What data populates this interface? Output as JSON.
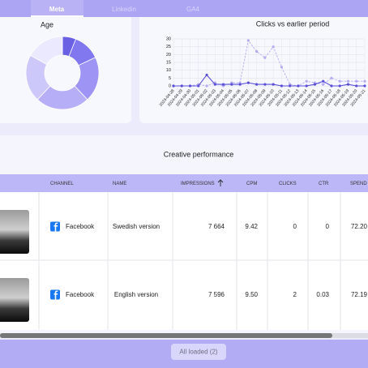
{
  "tabs": [
    {
      "label": "Meta",
      "active": true
    },
    {
      "label": "Linkedin",
      "active": false
    },
    {
      "label": "GA4",
      "active": false
    }
  ],
  "chart_data": [
    {
      "type": "pie",
      "title": "Age",
      "donut": true,
      "values": [
        6,
        12,
        20,
        24,
        21,
        17
      ],
      "colors": [
        "#6a60e4",
        "#8177ee",
        "#9d94f3",
        "#b6aff7",
        "#cdc8fa",
        "#ebe9fd"
      ]
    },
    {
      "type": "line",
      "title": "Clicks vs earlier period",
      "x": [
        "2024-04-28",
        "2024-04-29",
        "2024-04-30",
        "2024-05-01",
        "2024-05-02",
        "2024-05-03",
        "2024-05-04",
        "2024-05-05",
        "2024-05-06",
        "2024-05-07",
        "2024-05-08",
        "2024-05-09",
        "2024-05-10",
        "2024-05-11",
        "2024-05-12",
        "2024-05-13",
        "2024-05-14",
        "2024-05-15",
        "2024-05-16",
        "2024-05-17",
        "2024-05-18",
        "2024-05-19",
        "2024-05-20",
        "2024-05-21"
      ],
      "series": [
        {
          "color": "#5a50d8",
          "dashed": false,
          "values": [
            0,
            0,
            0,
            0,
            7,
            1,
            1,
            1,
            1,
            2,
            1,
            1,
            1,
            0,
            0,
            0,
            0,
            1,
            3,
            0,
            0,
            1,
            0,
            0
          ]
        },
        {
          "color": "#b3acf2",
          "dashed": true,
          "values": [
            0,
            0,
            0,
            1,
            0,
            2,
            0,
            2,
            2,
            29,
            22,
            18,
            25,
            12,
            1,
            0,
            3,
            2,
            1,
            5,
            3,
            3,
            3,
            3
          ]
        }
      ],
      "ylim": [
        0,
        30
      ],
      "yticks": [
        0,
        5,
        10,
        15,
        20,
        25,
        30
      ],
      "grid": true
    }
  ],
  "table": {
    "title": "Creative performance",
    "columns": [
      "CHANNEL",
      "NAME",
      "IMPRESSIONS",
      "CPM",
      "CLICKS",
      "CTR",
      "SPEND"
    ],
    "rows": [
      [
        "Facebook",
        "Swedish version",
        "7 664",
        "9.42",
        "0",
        "0",
        "72.20"
      ],
      [
        "Facebook",
        "English version",
        "7 596",
        "9.50",
        "2",
        "0.03",
        "72.19"
      ]
    ]
  },
  "footer": {
    "button": "All loaded (2)"
  }
}
